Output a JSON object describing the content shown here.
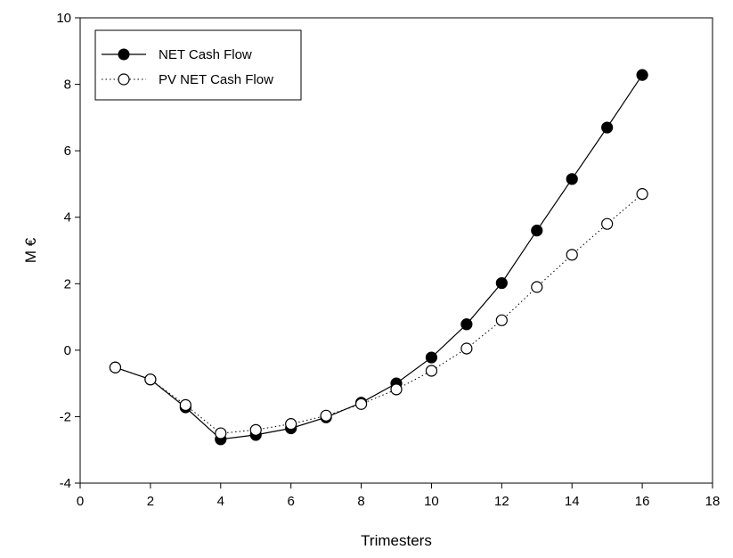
{
  "chart_data": {
    "type": "line",
    "title": "",
    "xlabel": "Trimesters",
    "ylabel": "M €",
    "xlim": [
      0,
      18
    ],
    "ylim": [
      -4,
      10
    ],
    "xticks": [
      0,
      2,
      4,
      6,
      8,
      10,
      12,
      14,
      16,
      18
    ],
    "yticks": [
      -4,
      -2,
      0,
      2,
      4,
      6,
      8,
      10
    ],
    "grid": false,
    "legend_position": "top-left",
    "x": [
      1,
      2,
      3,
      4,
      5,
      6,
      7,
      8,
      9,
      10,
      11,
      12,
      13,
      14,
      15,
      16
    ],
    "series": [
      {
        "name": "NET Cash Flow",
        "marker": "filled-circle",
        "line": "solid",
        "values": [
          -0.52,
          -0.88,
          -1.72,
          -2.68,
          -2.55,
          -2.35,
          -2.02,
          -1.58,
          -1.0,
          -0.22,
          0.78,
          2.02,
          3.6,
          5.15,
          6.7,
          8.28
        ]
      },
      {
        "name": "PV NET Cash Flow",
        "marker": "open-circle",
        "line": "dotted",
        "values": [
          -0.52,
          -0.88,
          -1.65,
          -2.5,
          -2.4,
          -2.22,
          -1.97,
          -1.62,
          -1.18,
          -0.62,
          0.05,
          0.9,
          1.9,
          2.87,
          3.8,
          4.7
        ]
      }
    ]
  }
}
